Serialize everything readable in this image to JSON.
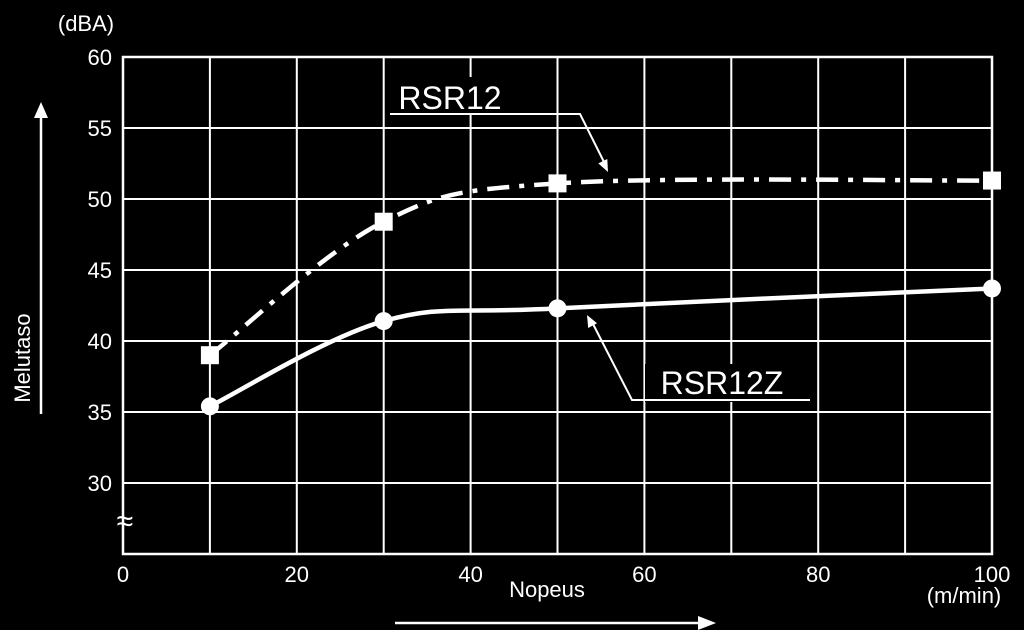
{
  "chart_data": {
    "type": "line",
    "ylabel_unit": "(dBA)",
    "ylabel": "Melutaso",
    "xlabel": "Nopeus",
    "xlabel_unit": "(m/min)",
    "xlim": [
      0,
      100
    ],
    "ylim": [
      25,
      60
    ],
    "x_ticks": [
      0,
      20,
      40,
      60,
      80,
      100
    ],
    "y_ticks": [
      30,
      35,
      40,
      45,
      50,
      55,
      60
    ],
    "axis_break_symbol": "≈",
    "grid": true,
    "colors": {
      "background": "#000000",
      "foreground": "#ffffff"
    },
    "series": [
      {
        "name": "RSR12",
        "marker": "square",
        "line_style": "dash-dot",
        "x": [
          10,
          30,
          50,
          100
        ],
        "y": [
          39.0,
          48.4,
          51.1,
          51.3
        ]
      },
      {
        "name": "RSR12Z",
        "marker": "circle",
        "line_style": "solid",
        "x": [
          10,
          30,
          50,
          100
        ],
        "y": [
          35.4,
          41.4,
          42.3,
          43.7
        ]
      }
    ]
  }
}
